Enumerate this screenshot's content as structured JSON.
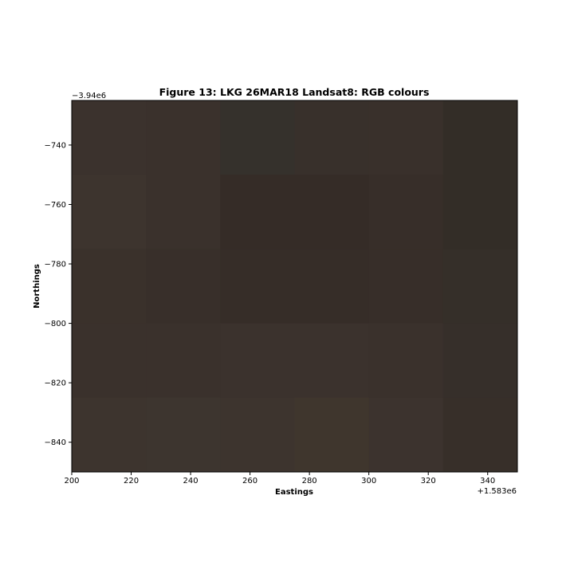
{
  "chart_data": {
    "type": "heatmap",
    "title": "Figure 13: LKG 26MAR18  Landsat8: RGB colours",
    "xlabel": "Eastings",
    "ylabel": "Northings",
    "x_offset_label": "+1.583e6",
    "y_offset_label": "−3.94e6",
    "xlim": [
      200,
      350
    ],
    "ylim": [
      -850,
      -725
    ],
    "x_ticks": [
      200,
      220,
      240,
      260,
      280,
      300,
      320,
      340
    ],
    "x_tick_labels": [
      "200",
      "220",
      "240",
      "260",
      "280",
      "300",
      "320",
      "340"
    ],
    "y_ticks": [
      -740,
      -760,
      -780,
      -800,
      -820,
      -840
    ],
    "y_tick_labels": [
      "−740",
      "−760",
      "−780",
      "−800",
      "−820",
      "−840"
    ],
    "grid": false,
    "pixel_size": 25,
    "x_edges": [
      200,
      225,
      250,
      275,
      300,
      325,
      350
    ],
    "y_edges": [
      -725,
      -750,
      -775,
      -800,
      -825,
      -850
    ],
    "pixel_colors": [
      [
        "#3b322d",
        "#3a312c",
        "#35312c",
        "#38302b",
        "#39302b",
        "#332d27"
      ],
      [
        "#3d342e",
        "#3a312c",
        "#352c27",
        "#352c27",
        "#372e29",
        "#332d27"
      ],
      [
        "#3a312b",
        "#382f2a",
        "#362d28",
        "#362d28",
        "#372e29",
        "#352f29"
      ],
      [
        "#3a312c",
        "#3a312c",
        "#3b322d",
        "#3b322d",
        "#3a312c",
        "#362f2a"
      ],
      [
        "#3d342e",
        "#3d352f",
        "#3d342e",
        "#3f362d",
        "#3c332e",
        "#372f29"
      ]
    ]
  }
}
